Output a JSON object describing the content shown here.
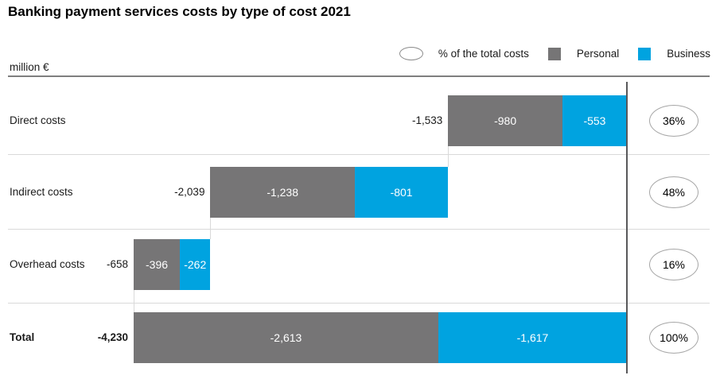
{
  "chart_data": {
    "type": "bar",
    "subtype": "horizontal-stacked-waterfall",
    "title": "Banking payment services costs by type of cost 2021",
    "unit_label": "million €",
    "xlabel": "million €",
    "ylabel": "",
    "xlim": [
      -4230,
      0
    ],
    "grid": false,
    "legend_position": "top-right",
    "legend": [
      {
        "label": "% of the total costs",
        "marker": "ellipse-outline"
      },
      {
        "label": "Personal",
        "marker": "square",
        "color": "#767576"
      },
      {
        "label": "Business",
        "marker": "square",
        "color": "#00a3e0"
      }
    ],
    "categories": [
      "Direct costs",
      "Indirect costs",
      "Overhead costs",
      "Total"
    ],
    "series": [
      {
        "name": "Personal",
        "values": [
          -980,
          -1238,
          -396,
          -2613
        ]
      },
      {
        "name": "Business",
        "values": [
          -553,
          -801,
          -262,
          -1617
        ]
      }
    ],
    "totals": [
      -1533,
      -2039,
      -658,
      -4230
    ],
    "percent_of_total": [
      "36%",
      "48%",
      "16%",
      "100%"
    ],
    "rows": [
      {
        "label": "Direct costs",
        "total": 1533,
        "personal": 980,
        "business": 553,
        "total_label": "-1,533",
        "personal_label": "-980",
        "business_label": "-553",
        "percent": "36%",
        "is_total": false
      },
      {
        "label": "Indirect costs",
        "total": 2039,
        "personal": 1238,
        "business": 801,
        "total_label": "-2,039",
        "personal_label": "-1,238",
        "business_label": "-801",
        "percent": "48%",
        "is_total": false
      },
      {
        "label": "Overhead costs",
        "total": 658,
        "personal": 396,
        "business": 262,
        "total_label": "-658",
        "personal_label": "-396",
        "business_label": "-262",
        "percent": "16%",
        "is_total": false
      },
      {
        "label": "Total",
        "total": 4230,
        "personal": 2613,
        "business": 1617,
        "total_label": "-4,230",
        "personal_label": "-2,613",
        "business_label": "-1,617",
        "percent": "100%",
        "is_total": true
      }
    ],
    "colors": {
      "personal": "#767576",
      "business": "#00a3e0",
      "axis_line": "#58585a",
      "top_rule": "#7f7f7f",
      "separator": "#d9d9d9",
      "ellipse_border": "#a6a6a6",
      "text": "#1a1a1a",
      "bar_value_text": "#ffffff"
    }
  }
}
